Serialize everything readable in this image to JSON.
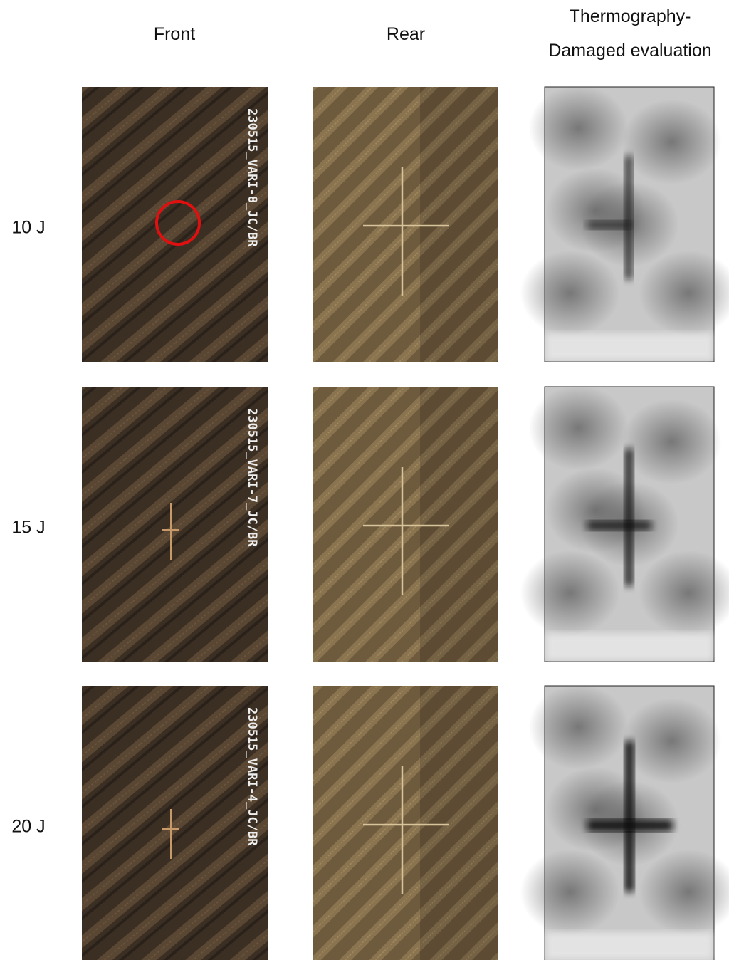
{
  "header": {
    "columns": [
      "Front",
      "Rear",
      "Thermography-",
      "Damaged evaluation"
    ]
  },
  "rows": [
    {
      "label": "10 J",
      "specimen_label": "230515_VARI-8_JC/BR"
    },
    {
      "label": "15 J",
      "specimen_label": "230515_VARI-7_JC/BR"
    },
    {
      "label": "20 J",
      "specimen_label": "230515_VARI-4_JC/BR"
    }
  ]
}
